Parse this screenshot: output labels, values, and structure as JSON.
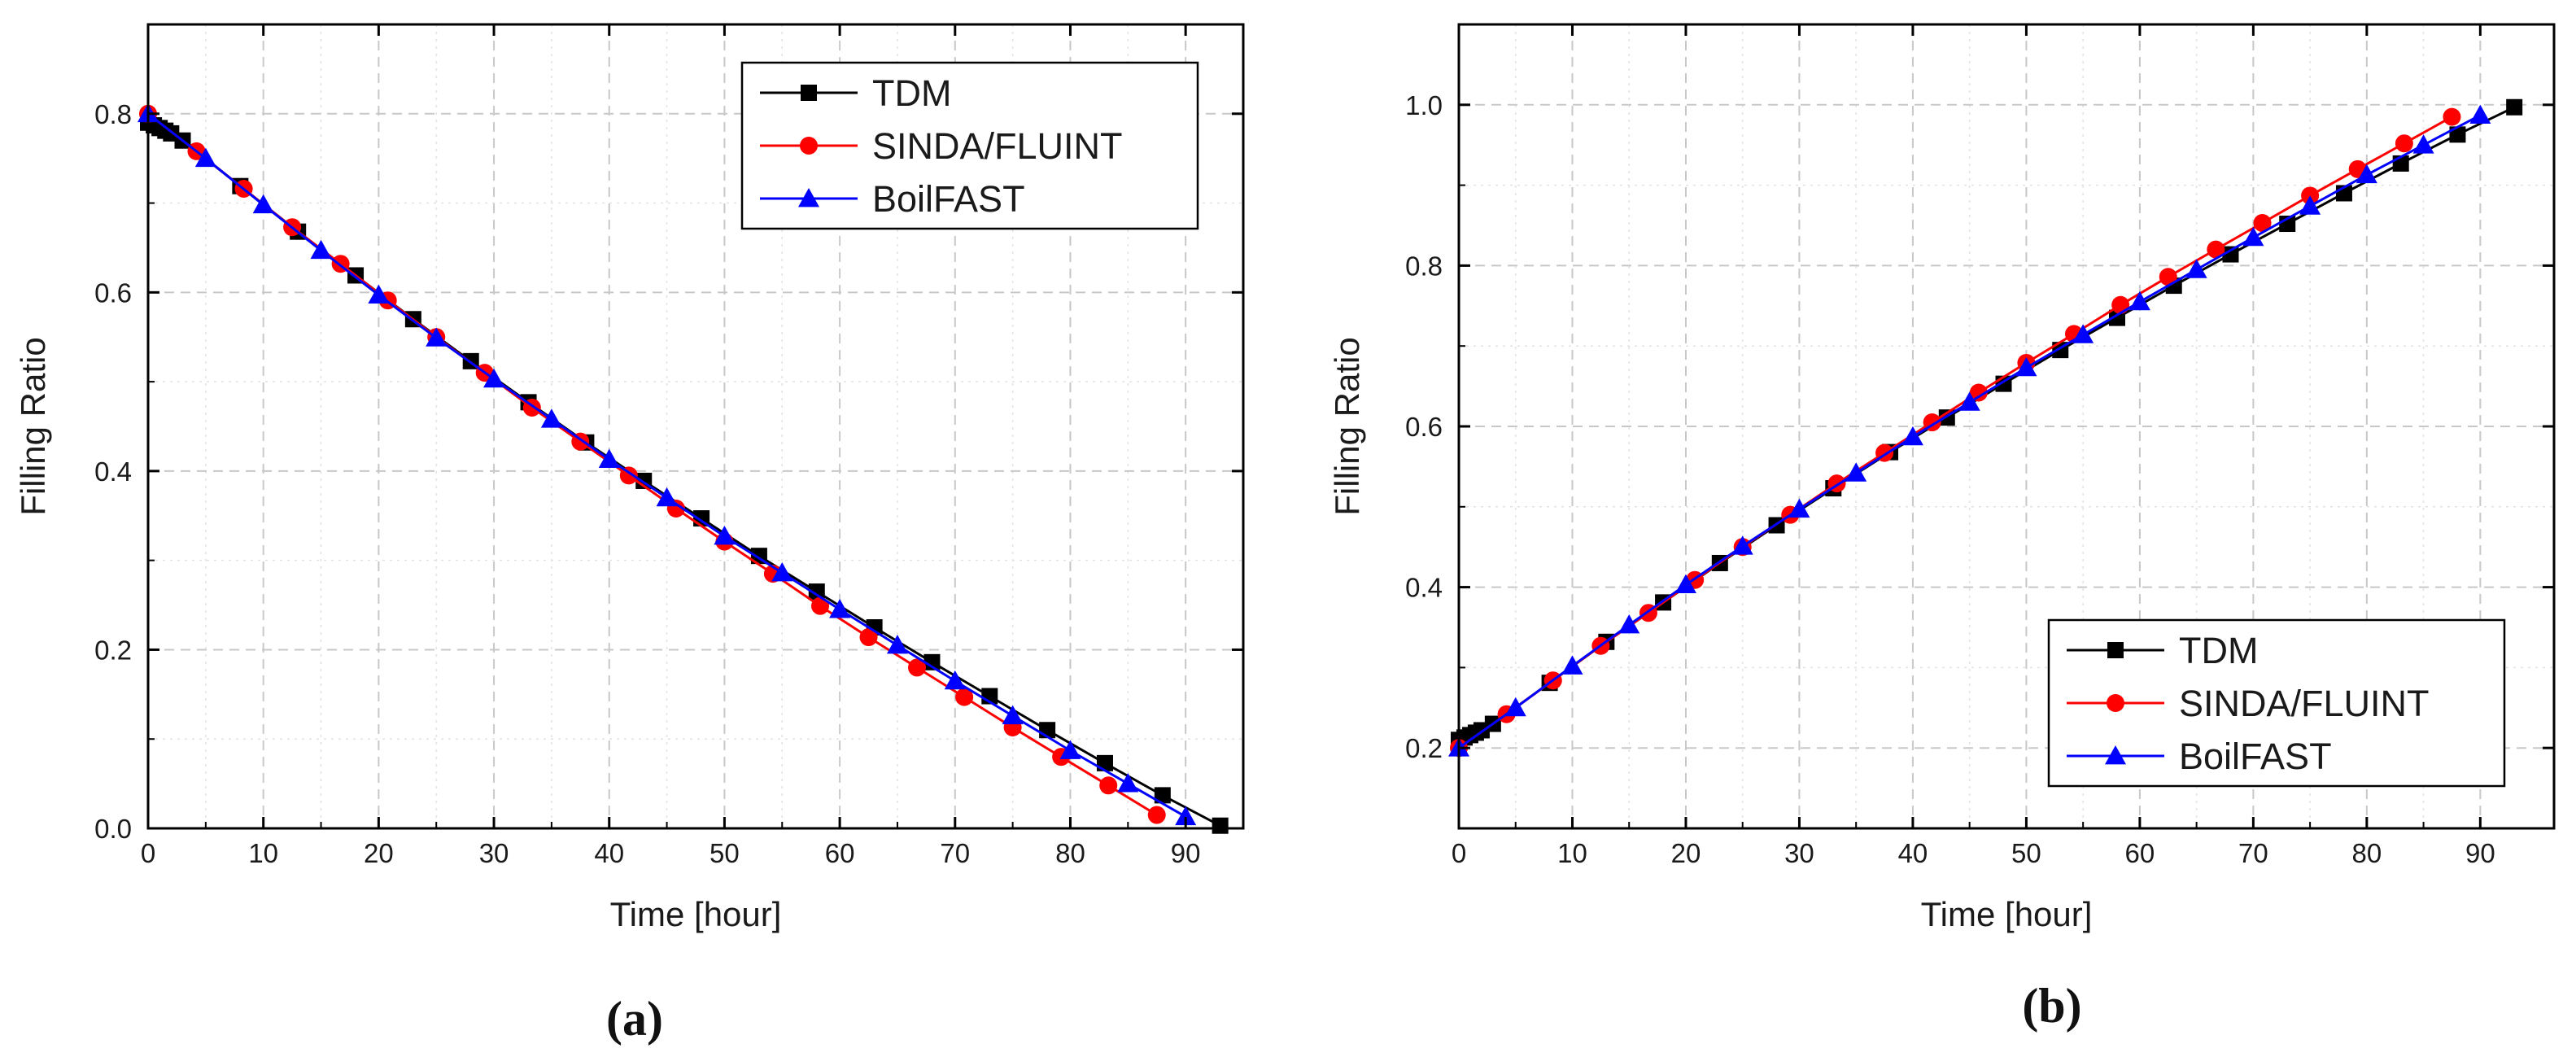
{
  "chart_data": [
    {
      "type": "line",
      "panel_label": "(a)",
      "xlabel": "Time [hour]",
      "ylabel": "Filling Ratio",
      "xlim": [
        0,
        95
      ],
      "ylim": [
        0,
        0.9
      ],
      "xticks": [
        0,
        10,
        20,
        30,
        40,
        50,
        60,
        70,
        80,
        90
      ],
      "yticks": [
        0.0,
        0.2,
        0.4,
        0.6,
        0.8
      ],
      "xtick_labels": [
        "0",
        "10",
        "20",
        "30",
        "40",
        "50",
        "60",
        "70",
        "80",
        "90"
      ],
      "ytick_labels": [
        "0.0",
        "0.2",
        "0.4",
        "0.6",
        "0.8"
      ],
      "grid": true,
      "legend_position": "top-right",
      "series": [
        {
          "name": "TDM",
          "color": "#000000",
          "marker": "square",
          "x": [
            0,
            0.5,
            1,
            1.5,
            2,
            3,
            8,
            13,
            18,
            23,
            28,
            33,
            38,
            43,
            48,
            53,
            58,
            63,
            68,
            73,
            78,
            83,
            88,
            93
          ],
          "y": [
            0.79,
            0.787,
            0.784,
            0.781,
            0.778,
            0.77,
            0.719,
            0.668,
            0.619,
            0.57,
            0.523,
            0.477,
            0.432,
            0.389,
            0.347,
            0.305,
            0.265,
            0.225,
            0.186,
            0.148,
            0.11,
            0.073,
            0.037,
            0.003
          ]
        },
        {
          "name": "SINDA/FLUINT",
          "color": "#ff0000",
          "marker": "circle",
          "x": [
            0,
            4.2,
            8.3,
            12.5,
            16.7,
            20.8,
            25,
            29.2,
            33.3,
            37.5,
            41.7,
            45.8,
            50,
            54.2,
            58.3,
            62.5,
            66.7,
            70.8,
            75,
            79.2,
            83.3,
            87.5
          ],
          "y": [
            0.8,
            0.758,
            0.716,
            0.673,
            0.632,
            0.591,
            0.55,
            0.51,
            0.471,
            0.433,
            0.395,
            0.358,
            0.321,
            0.285,
            0.249,
            0.214,
            0.18,
            0.147,
            0.113,
            0.08,
            0.048,
            0.015
          ]
        },
        {
          "name": "BoilFAST",
          "color": "#0000ff",
          "marker": "triangle",
          "x": [
            0,
            5,
            10,
            15,
            20,
            25,
            30,
            35,
            40,
            45,
            50,
            55,
            60,
            65,
            70,
            75,
            80,
            85,
            90
          ],
          "y": [
            0.8,
            0.75,
            0.698,
            0.647,
            0.597,
            0.549,
            0.503,
            0.458,
            0.413,
            0.37,
            0.327,
            0.286,
            0.245,
            0.205,
            0.165,
            0.126,
            0.087,
            0.05,
            0.013
          ]
        }
      ]
    },
    {
      "type": "line",
      "panel_label": "(b)",
      "xlabel": "Time [hour]",
      "ylabel": "Filling Ratio",
      "xlim": [
        0,
        96.5
      ],
      "ylim": [
        0.1,
        1.1
      ],
      "xticks": [
        0,
        10,
        20,
        30,
        40,
        50,
        60,
        70,
        80,
        90
      ],
      "yticks": [
        0.2,
        0.4,
        0.6,
        0.8,
        1.0
      ],
      "xtick_labels": [
        "0",
        "10",
        "20",
        "30",
        "40",
        "50",
        "60",
        "70",
        "80",
        "90"
      ],
      "ytick_labels": [
        "0.2",
        "0.4",
        "0.6",
        "0.8",
        "1.0"
      ],
      "grid": true,
      "legend_position": "bottom-right",
      "series": [
        {
          "name": "TDM",
          "color": "#000000",
          "marker": "square",
          "x": [
            0,
            0.5,
            1,
            1.5,
            2,
            3,
            8,
            13,
            18,
            23,
            28,
            33,
            38,
            43,
            48,
            53,
            58,
            63,
            68,
            73,
            78,
            83,
            88,
            93
          ],
          "y": [
            0.21,
            0.213,
            0.216,
            0.219,
            0.222,
            0.23,
            0.281,
            0.332,
            0.381,
            0.43,
            0.477,
            0.523,
            0.568,
            0.611,
            0.653,
            0.695,
            0.735,
            0.775,
            0.814,
            0.852,
            0.89,
            0.927,
            0.963,
            0.997
          ]
        },
        {
          "name": "SINDA/FLUINT",
          "color": "#ff0000",
          "marker": "circle",
          "x": [
            0,
            4.2,
            8.3,
            12.5,
            16.7,
            20.8,
            25,
            29.2,
            33.3,
            37.5,
            41.7,
            45.8,
            50,
            54.2,
            58.3,
            62.5,
            66.7,
            70.8,
            75,
            79.2,
            83.3,
            87.5
          ],
          "y": [
            0.2,
            0.242,
            0.284,
            0.327,
            0.368,
            0.409,
            0.45,
            0.49,
            0.529,
            0.567,
            0.605,
            0.642,
            0.679,
            0.715,
            0.751,
            0.786,
            0.82,
            0.853,
            0.887,
            0.92,
            0.952,
            0.985
          ]
        },
        {
          "name": "BoilFAST",
          "color": "#0000ff",
          "marker": "triangle",
          "x": [
            0,
            5,
            10,
            15,
            20,
            25,
            30,
            35,
            40,
            45,
            50,
            55,
            60,
            65,
            70,
            75,
            80,
            85,
            90
          ],
          "y": [
            0.2,
            0.25,
            0.302,
            0.353,
            0.403,
            0.451,
            0.497,
            0.542,
            0.587,
            0.63,
            0.673,
            0.714,
            0.755,
            0.795,
            0.835,
            0.874,
            0.913,
            0.95,
            0.987
          ]
        }
      ]
    }
  ]
}
